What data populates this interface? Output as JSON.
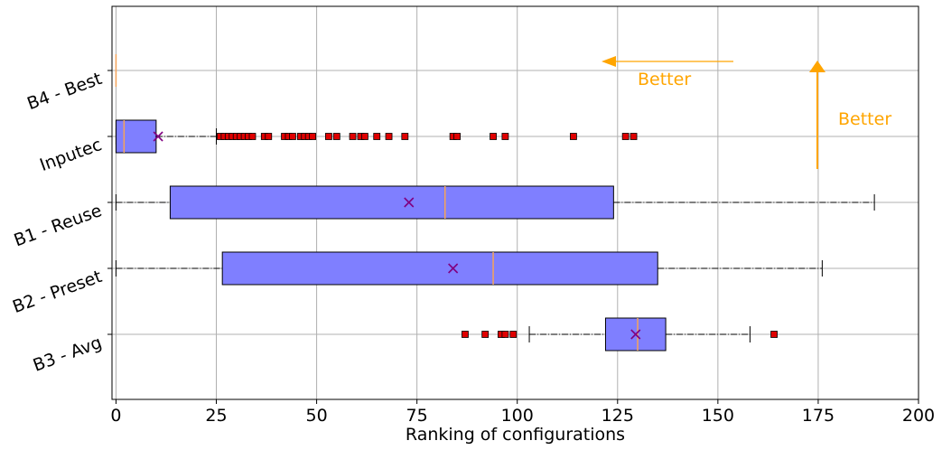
{
  "chart_data": {
    "type": "boxplot",
    "orientation": "horizontal",
    "xlabel": "Ranking of configurations",
    "ylabel": "",
    "xlim": [
      -1,
      200
    ],
    "x_ticks": [
      0,
      25,
      50,
      75,
      100,
      125,
      150,
      175,
      200
    ],
    "grid": true,
    "colors": {
      "box_fill": "#7f7fff",
      "median": "#f5a35a",
      "mean_marker": "#800080",
      "outlier": "#e00000",
      "annotation": "#ffa500"
    },
    "series": [
      {
        "name": "B4 - Best",
        "whislo": 0,
        "q1": 0,
        "med": 0,
        "q3": 0,
        "whishi": 0,
        "mean": 0,
        "fliers": []
      },
      {
        "name": "Inputec",
        "whislo": 0,
        "q1": 0,
        "med": 2,
        "q3": 10,
        "whishi": 25,
        "mean": 10.5,
        "fliers": [
          26,
          27,
          28,
          29,
          30,
          31,
          32,
          33,
          34,
          37,
          38,
          42,
          43,
          44,
          46,
          47,
          48,
          49,
          53,
          55,
          59,
          61,
          62,
          65,
          68,
          72,
          84,
          85,
          94,
          97,
          114,
          127,
          129
        ]
      },
      {
        "name": "B1 - Reuse",
        "whislo": 0,
        "q1": 13.5,
        "med": 82,
        "q3": 124,
        "whishi": 189,
        "mean": 73,
        "fliers": []
      },
      {
        "name": "B2 - Preset",
        "whislo": 0,
        "q1": 26.5,
        "med": 94,
        "q3": 135,
        "whishi": 176,
        "mean": 84,
        "fliers": []
      },
      {
        "name": "B3 - Avg",
        "whislo": 103,
        "q1": 122,
        "med": 130,
        "q3": 137,
        "whishi": 158,
        "mean": 129.5,
        "fliers": [
          87,
          92,
          96,
          97,
          99,
          164
        ]
      }
    ],
    "annotations": [
      {
        "text": "Better",
        "direction": "left"
      },
      {
        "text": "Better",
        "direction": "up"
      }
    ]
  }
}
